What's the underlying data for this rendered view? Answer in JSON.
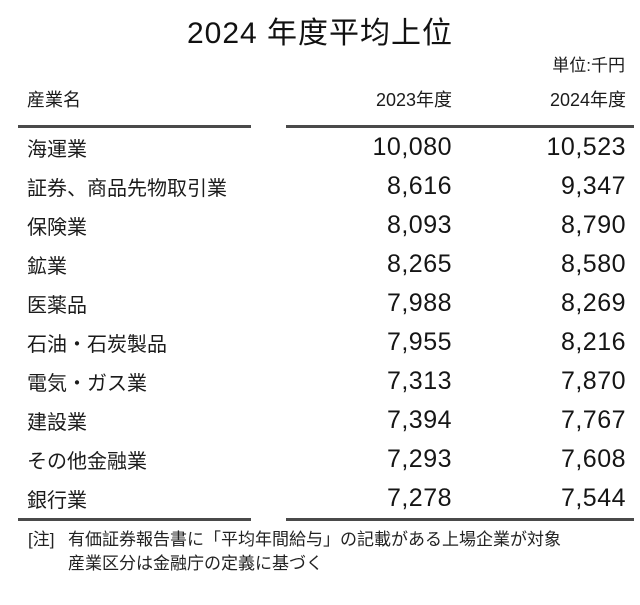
{
  "page": {
    "title": "2024 年度平均上位",
    "unit_label": "単位:千円"
  },
  "table": {
    "headers": {
      "industry": "産業名",
      "fy2023": "2023年度",
      "fy2024": "2024年度"
    },
    "rows": [
      {
        "industry": "海運業",
        "fy2023": "10,080",
        "fy2024": "10,523"
      },
      {
        "industry": "証券、商品先物取引業",
        "fy2023": "8,616",
        "fy2024": "9,347"
      },
      {
        "industry": "保険業",
        "fy2023": "8,093",
        "fy2024": "8,790"
      },
      {
        "industry": "鉱業",
        "fy2023": "8,265",
        "fy2024": "8,580"
      },
      {
        "industry": "医薬品",
        "fy2023": "7,988",
        "fy2024": "8,269"
      },
      {
        "industry": "石油・石炭製品",
        "fy2023": "7,955",
        "fy2024": "8,216"
      },
      {
        "industry": "電気・ガス業",
        "fy2023": "7,313",
        "fy2024": "7,870"
      },
      {
        "industry": "建設業",
        "fy2023": "7,394",
        "fy2024": "7,767"
      },
      {
        "industry": "その他金融業",
        "fy2023": "7,293",
        "fy2024": "7,608"
      },
      {
        "industry": "銀行業",
        "fy2023": "7,278",
        "fy2024": "7,544"
      }
    ]
  },
  "note": {
    "tag": "[注]",
    "line1": "有価証券報告書に「平均年間給与」の記載がある上場企業が対象",
    "line2": "産業区分は金融庁の定義に基づく"
  },
  "colors": {
    "text": "#1b1b1b",
    "rule": "#4a4a4a"
  },
  "chart_data": {
    "type": "table",
    "title": "2024 年度平均上位",
    "unit": "千円",
    "columns": [
      "産業名",
      "2023年度",
      "2024年度"
    ],
    "categories": [
      "海運業",
      "証券、商品先物取引業",
      "保険業",
      "鉱業",
      "医薬品",
      "石油・石炭製品",
      "電気・ガス業",
      "建設業",
      "その他金融業",
      "銀行業"
    ],
    "series": [
      {
        "name": "2023年度",
        "values": [
          10080,
          8616,
          8093,
          8265,
          7988,
          7955,
          7313,
          7394,
          7293,
          7278
        ]
      },
      {
        "name": "2024年度",
        "values": [
          10523,
          9347,
          8790,
          8580,
          8269,
          8216,
          7870,
          7767,
          7608,
          7544
        ]
      }
    ],
    "note": "[注] 有価証券報告書に「平均年間給与」の記載がある上場企業が対象 産業区分は金融庁の定義に基づく"
  }
}
